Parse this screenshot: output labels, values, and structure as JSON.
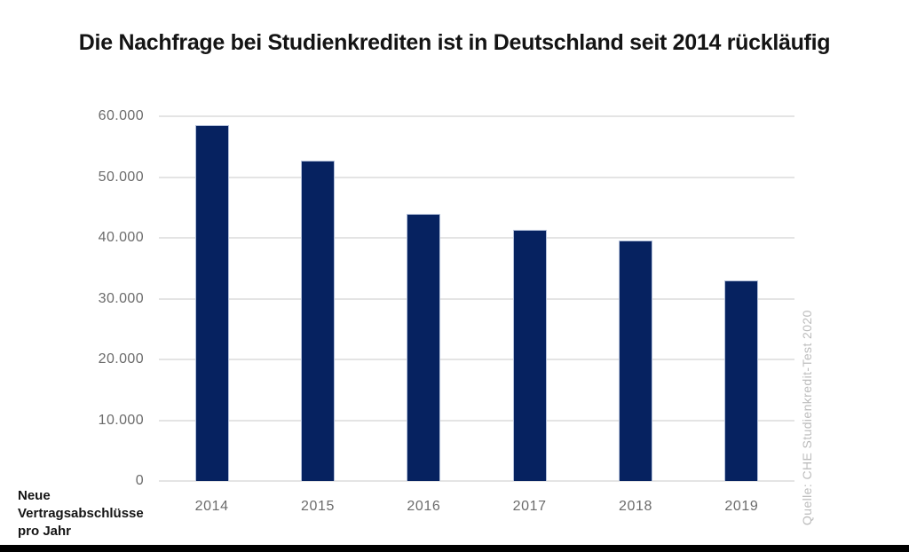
{
  "chart_data": {
    "type": "bar",
    "title": "Die Nachfrage bei Studienkrediten ist in Deutschland seit 2014 rückläufig",
    "categories": [
      "2014",
      "2015",
      "2016",
      "2017",
      "2018",
      "2019"
    ],
    "values": [
      58500,
      52700,
      44000,
      41300,
      39600,
      33000
    ],
    "ylabel": "Neue\nVertragsabschlüsse\npro Jahr",
    "source": "Quelle: CHE Studienkredit-Test 2020",
    "ylim": [
      0,
      60000
    ],
    "y_ticks": [
      0,
      10000,
      20000,
      30000,
      40000,
      50000,
      60000
    ],
    "y_tick_labels": [
      "0",
      "10.000",
      "20.000",
      "30.000",
      "40.000",
      "50.000",
      "60.000"
    ],
    "grid": true,
    "legend": false,
    "colors": {
      "bar": "#062260",
      "bar_edge": "#b3c0da",
      "gridline": "#e4e4e4",
      "tick_text": "#6b6b6b",
      "title_text": "#141414",
      "axis_caption_text": "#141414",
      "source_text": "#bcbcbc",
      "bottom_strip": "#000000"
    }
  }
}
